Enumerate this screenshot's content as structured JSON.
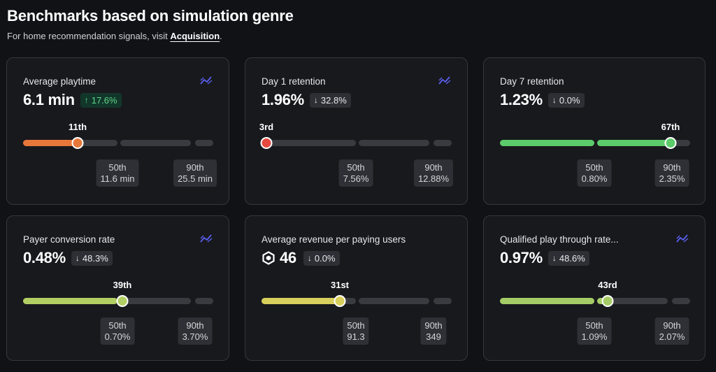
{
  "header": {
    "title": "Benchmarks based on simulation genre",
    "subtitle_prefix": "For home recommendation signals, visit ",
    "subtitle_link": "Acquisition",
    "subtitle_suffix": "."
  },
  "colors": {
    "orange": "#e8773a",
    "red": "#e5483f",
    "green": "#5ccb6a",
    "lime": "#b2cf63",
    "yellow": "#d8cf5c",
    "lime2": "#a5cc66",
    "trend_icon": "#5a5ff0"
  },
  "cards": [
    {
      "title": "Average playtime",
      "value": "6.1 min",
      "delta": "17.6%",
      "delta_direction": "up",
      "rank": "11th",
      "percentile_position": 0.11,
      "color": "#e8773a",
      "p50": {
        "label": "50th",
        "value": "11.6 min"
      },
      "p90": {
        "label": "90th",
        "value": "25.5 min"
      },
      "icon": "trend-icon"
    },
    {
      "title": "Day 1 retention",
      "value": "1.96%",
      "delta": "32.8%",
      "delta_direction": "down",
      "rank": "3rd",
      "percentile_position": 0.03,
      "color": "#e5483f",
      "p50": {
        "label": "50th",
        "value": "7.56%"
      },
      "p90": {
        "label": "90th",
        "value": "12.88%"
      },
      "icon": "trend-icon"
    },
    {
      "title": "Day 7 retention",
      "value": "1.23%",
      "delta": "0.0%",
      "delta_direction": "down",
      "rank": "67th",
      "percentile_position": 0.67,
      "color": "#5ccb6a",
      "p50": {
        "label": "50th",
        "value": "0.80%"
      },
      "p90": {
        "label": "90th",
        "value": "2.35%"
      },
      "icon": null
    },
    {
      "title": "Payer conversion rate",
      "value": "0.48%",
      "delta": "48.3%",
      "delta_direction": "down",
      "rank": "39th",
      "percentile_position": 0.39,
      "color": "#b2cf63",
      "p50": {
        "label": "50th",
        "value": "0.70%"
      },
      "p90": {
        "label": "90th",
        "value": "3.70%"
      },
      "icon": "trend-icon"
    },
    {
      "title": "Average revenue per paying users",
      "value": "46",
      "currency_icon": "robux-icon",
      "delta": "0.0%",
      "delta_direction": "down",
      "rank": "31st",
      "percentile_position": 0.31,
      "color": "#d8cf5c",
      "p50": {
        "label": "50th",
        "value": "91.3"
      },
      "p90": {
        "label": "90th",
        "value": "349"
      },
      "icon": null
    },
    {
      "title": "Qualified play through rate...",
      "value": "0.97%",
      "delta": "48.6%",
      "delta_direction": "down",
      "rank": "43rd",
      "percentile_position": 0.43,
      "color": "#a5cc66",
      "p50": {
        "label": "50th",
        "value": "1.09%"
      },
      "p90": {
        "label": "90th",
        "value": "2.07%"
      },
      "icon": "trend-icon"
    }
  ]
}
